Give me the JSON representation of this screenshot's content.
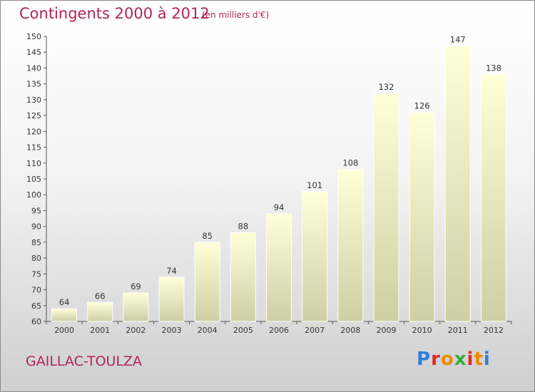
{
  "header": {
    "title": "Contingents 2000 à 2012",
    "subtitle": "(en milliers d'€)"
  },
  "footer": {
    "commune": "GAILLAC-TOULZA",
    "logo": "Proxiti",
    "logo_colors": [
      "#2f7fd6",
      "#e02828",
      "#f08a00",
      "#3aa83a",
      "#e02828",
      "#f08a00",
      "#2f7fd6"
    ]
  },
  "colors": {
    "bar_top": "#ffffd8",
    "bar_bottom": "#cfcfa6",
    "title": "#b0245c"
  },
  "chart_data": {
    "type": "bar",
    "title": "Contingents 2000 à 2012",
    "subtitle": "(en milliers d'€)",
    "xlabel": "",
    "ylabel": "",
    "categories": [
      "2000",
      "2001",
      "2002",
      "2003",
      "2004",
      "2005",
      "2006",
      "2007",
      "2008",
      "2009",
      "2010",
      "2011",
      "2012"
    ],
    "values": [
      64,
      66,
      69,
      74,
      85,
      88,
      94,
      101,
      108,
      132,
      126,
      147,
      138
    ],
    "ylim": [
      60,
      150
    ],
    "yticks": [
      60,
      65,
      70,
      75,
      80,
      85,
      90,
      95,
      100,
      105,
      110,
      115,
      120,
      125,
      130,
      135,
      140,
      145,
      150
    ],
    "grid": false,
    "legend": "none"
  }
}
